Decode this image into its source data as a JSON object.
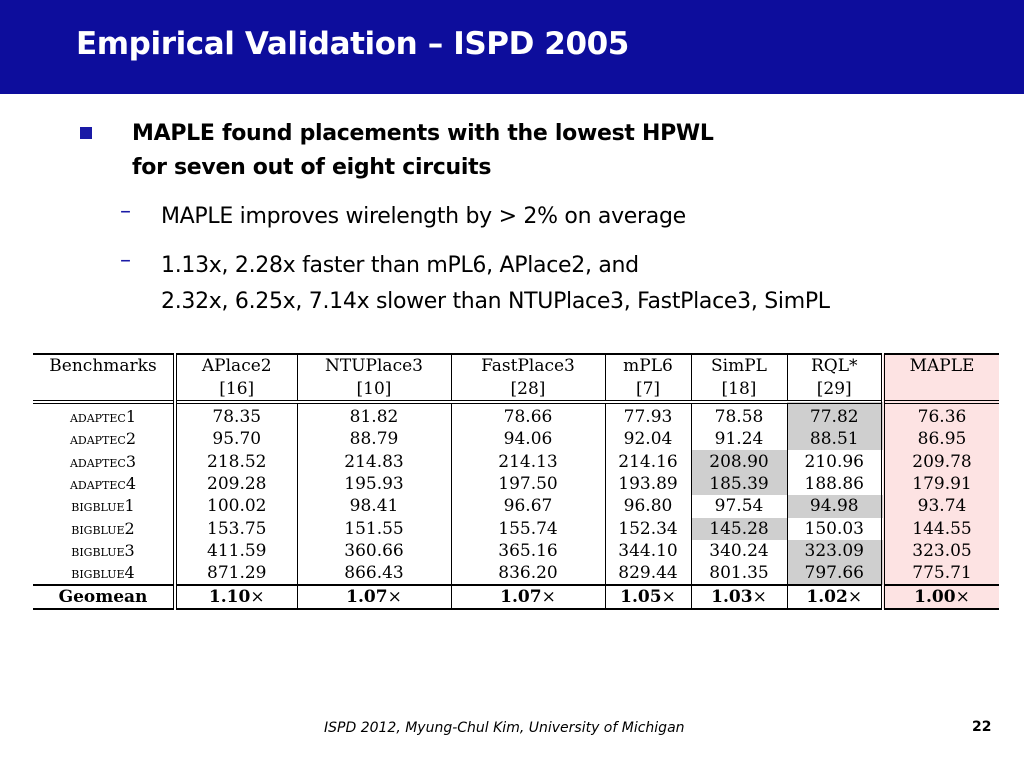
{
  "slide": {
    "title": "Empirical Validation – ISPD 2005",
    "bullet": {
      "line1": "MAPLE found placements with the lowest HPWL",
      "line2": "for seven out of eight circuits"
    },
    "subbullets": [
      {
        "line1": "MAPLE improves wirelength by > 2% on average"
      },
      {
        "line1": "1.13x, 2.28x faster than mPL6, APlace2, and",
        "line2": "2.32x, 6.25x, 7.14x slower than NTUPlace3, FastPlace3, SimPL"
      }
    ],
    "footer": "ISPD 2012, Myung-Chul Kim, University of Michigan",
    "page_number": "22"
  },
  "table": {
    "headers": [
      {
        "name": "Benchmarks",
        "ref": ""
      },
      {
        "name": "APlace2",
        "ref": "[16]"
      },
      {
        "name": "NTUPlace3",
        "ref": "[10]"
      },
      {
        "name": "FastPlace3",
        "ref": "[28]"
      },
      {
        "name": "mPL6",
        "ref": "[7]"
      },
      {
        "name": "SimPL",
        "ref": "[18]"
      },
      {
        "name": "RQL*",
        "ref": "[29]"
      },
      {
        "name": "MAPLE",
        "ref": ""
      }
    ],
    "rows": [
      {
        "bench": "adaptec1",
        "values": [
          "78.35",
          "81.82",
          "78.66",
          "77.93",
          "78.58",
          "77.82",
          "76.36"
        ],
        "gray": [
          5
        ],
        "bold": [
          6
        ]
      },
      {
        "bench": "adaptec2",
        "values": [
          "95.70",
          "88.79",
          "94.06",
          "92.04",
          "91.24",
          "88.51",
          "86.95"
        ],
        "gray": [
          5
        ],
        "bold": [
          6
        ]
      },
      {
        "bench": "adaptec3",
        "values": [
          "218.52",
          "214.83",
          "214.13",
          "214.16",
          "208.90",
          "210.96",
          "209.78"
        ],
        "gray": [
          4
        ],
        "bold": [
          4
        ]
      },
      {
        "bench": "adaptec4",
        "values": [
          "209.28",
          "195.93",
          "197.50",
          "193.89",
          "185.39",
          "188.86",
          "179.91"
        ],
        "gray": [
          4
        ],
        "bold": [
          6
        ]
      },
      {
        "bench": "bigblue1",
        "values": [
          "100.02",
          "98.41",
          "96.67",
          "96.80",
          "97.54",
          "94.98",
          "93.74"
        ],
        "gray": [
          5
        ],
        "bold": [
          6
        ]
      },
      {
        "bench": "bigblue2",
        "values": [
          "153.75",
          "151.55",
          "155.74",
          "152.34",
          "145.28",
          "150.03",
          "144.55"
        ],
        "gray": [
          4
        ],
        "bold": [
          6
        ]
      },
      {
        "bench": "bigblue3",
        "values": [
          "411.59",
          "360.66",
          "365.16",
          "344.10",
          "340.24",
          "323.09",
          "323.05"
        ],
        "gray": [
          5
        ],
        "bold": [
          6
        ]
      },
      {
        "bench": "bigblue4",
        "values": [
          "871.29",
          "866.43",
          "836.20",
          "829.44",
          "801.35",
          "797.66",
          "775.71"
        ],
        "gray": [
          5
        ],
        "bold": [
          6
        ]
      }
    ],
    "geomean": {
      "label": "Geomean",
      "values": [
        "1.10",
        "1.07",
        "1.07",
        "1.05",
        "1.03",
        "1.02",
        "1.00"
      ],
      "suffix": "×"
    }
  },
  "colors": {
    "title_bar": "#0d0d9c",
    "bullet_accent": "#1a1aa6",
    "best_cell_gray": "#cfcfcf",
    "maple_column_pink": "#fde3e3"
  }
}
